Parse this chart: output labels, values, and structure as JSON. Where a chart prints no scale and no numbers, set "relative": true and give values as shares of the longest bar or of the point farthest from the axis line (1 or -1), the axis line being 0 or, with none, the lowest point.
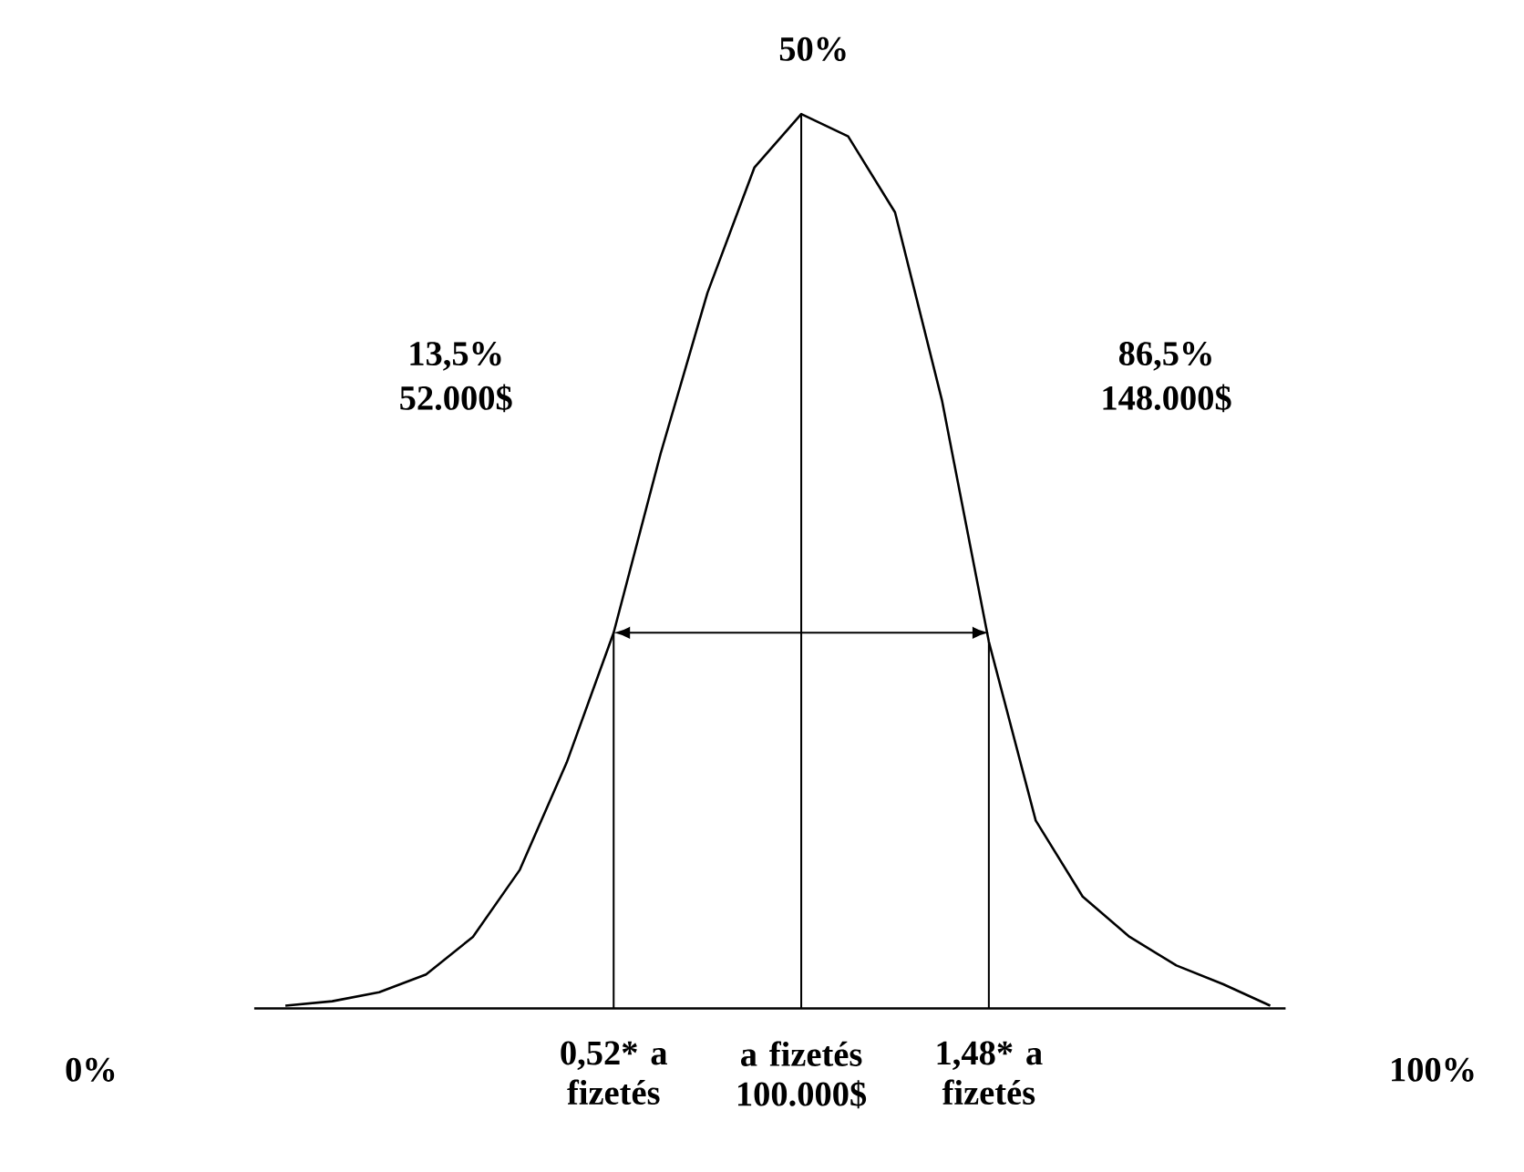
{
  "chart_data": {
    "type": "line",
    "relative": true,
    "categories": [
      null,
      null,
      null,
      null,
      null,
      null,
      null,
      "0,52* a fizetés",
      null,
      null,
      null,
      "a fizetés 100.000$",
      null,
      null,
      null,
      "1,48* a fizetés",
      null,
      null,
      null,
      null,
      null,
      null
    ],
    "series": [
      {
        "color": "#000000",
        "values": [
          0.003,
          0.008,
          0.018,
          0.038,
          0.08,
          0.155,
          0.275,
          0.42,
          0.62,
          0.8,
          0.94,
          1,
          0.975,
          0.89,
          0.68,
          0.41,
          0.21,
          0.125,
          0.08,
          0.048,
          0.027,
          0.003
        ]
      }
    ],
    "ref_lines": [
      {
        "axis": "x",
        "value": "0,52* a fizetés",
        "color": "#000000"
      },
      {
        "axis": "x",
        "value": "a fizetés 100.000$",
        "color": "#000000"
      },
      {
        "axis": "x",
        "value": "1,48* a fizetés",
        "color": "#000000"
      }
    ],
    "annotations": [
      "50%",
      "13,5% 52.000$",
      "86,5% 148.000$",
      "0%",
      "100%"
    ]
  }
}
